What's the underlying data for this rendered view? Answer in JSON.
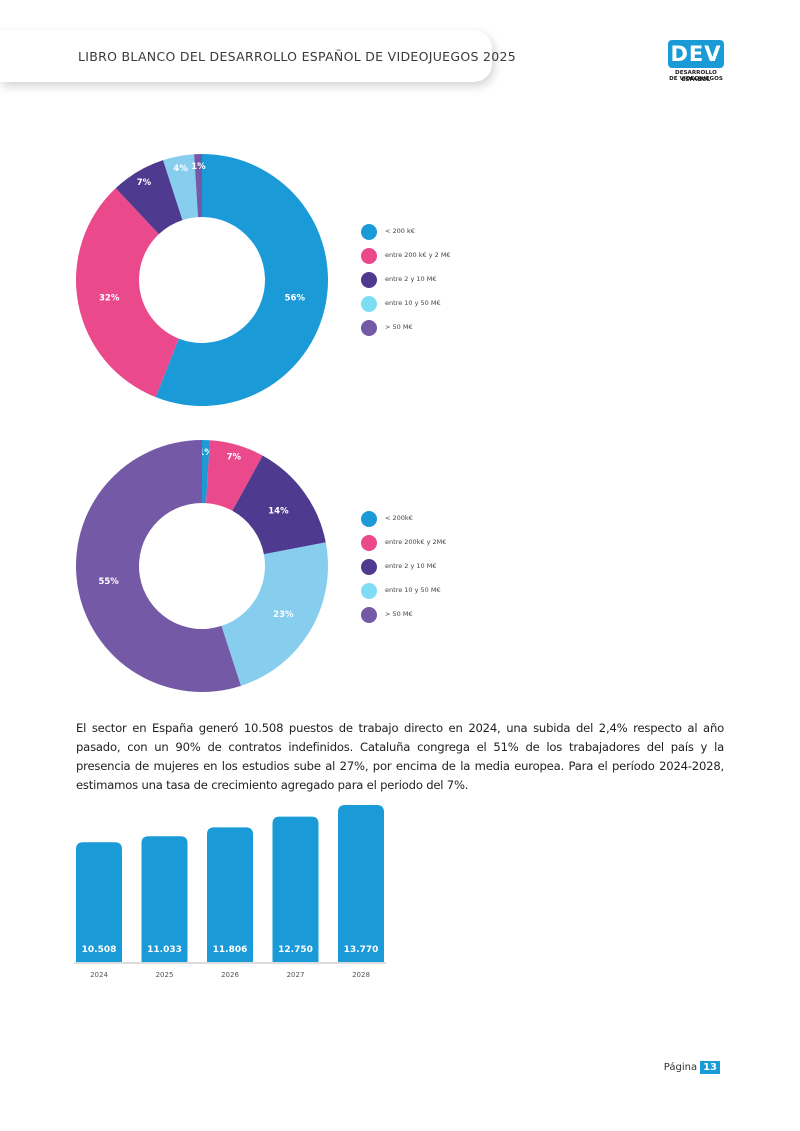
{
  "header": {
    "title": "LIBRO BLANCO DEL DESARROLLO ESPAÑOL DE VIDEOJUEGOS 2025"
  },
  "logo": {
    "mark": "DEV",
    "line1": "DESARROLLO ESPAÑOL",
    "line2": "DE VIDEOJUEGOS"
  },
  "colors": {
    "blue": "#1a9bd7",
    "pink": "#ea4a8b",
    "purple": "#4e3a8e",
    "lightblue": "#87cdee",
    "violet": "#7459a6",
    "cyan": "#7fdcf5"
  },
  "chart_data": [
    {
      "type": "pie",
      "title": "",
      "categories": [
        "< 200 k€",
        "entre 200 k€ y 2 M€",
        "entre 2 y 10 M€",
        "entre 10 y 50 M€",
        "> 50 M€"
      ],
      "values": [
        56,
        32,
        7,
        4,
        1
      ],
      "labels": [
        "56%",
        "32%",
        "7%",
        "4%",
        "1%"
      ],
      "slice_colors": [
        "#1a9bd7",
        "#ea4a8b",
        "#4e3a8e",
        "#87cdee",
        "#7459a6"
      ],
      "legend_colors": [
        "#1a9bd7",
        "#ea4a8b",
        "#4e3a8e",
        "#7fdcf5",
        "#7459a6"
      ],
      "donut": true,
      "legend": "right"
    },
    {
      "type": "pie",
      "title": "",
      "categories": [
        "< 200k€",
        "entre 200k€ y 2M€",
        "entre 2 y 10 M€",
        "entre 10 y 50 M€",
        "> 50 M€"
      ],
      "values": [
        1,
        7,
        14,
        23,
        55
      ],
      "labels": [
        "1%",
        "7%",
        "14%",
        "23%",
        "55%"
      ],
      "slice_colors": [
        "#1a9bd7",
        "#ea4a8b",
        "#4e3a8e",
        "#87cdee",
        "#7459a6"
      ],
      "legend_colors": [
        "#1a9bd7",
        "#ea4a8b",
        "#4e3a8e",
        "#7fdcf5",
        "#7459a6"
      ],
      "donut": true,
      "legend": "right"
    },
    {
      "type": "bar",
      "title": "",
      "categories": [
        "2024",
        "2025",
        "2026",
        "2027",
        "2028"
      ],
      "values": [
        10508,
        11033,
        11806,
        12750,
        13770
      ],
      "labels": [
        "10.508",
        "11.033",
        "11.806",
        "12.750",
        "13.770"
      ],
      "bar_color": "#1a9bd7",
      "xlabel": "",
      "ylabel": ""
    }
  ],
  "body": {
    "paragraph": "El sector en España generó 10.508 puestos de trabajo directo en 2024, una subida del 2,4% respecto al año pasado, con un 90% de contratos indefinidos. Cataluña congrega el 51% de los trabajadores del país y la presencia de mujeres en los estudios sube al 27%, por encima de la media europea. Para el período 2024-2028, estimamos una tasa de crecimiento agregado para el periodo del 7%."
  },
  "footer": {
    "page_label": "Página",
    "page_number": "13"
  }
}
